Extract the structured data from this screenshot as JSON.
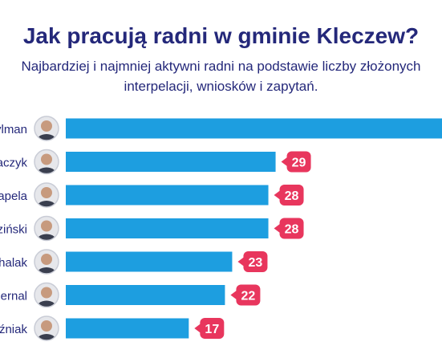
{
  "chart_data": {
    "type": "bar",
    "orientation": "horizontal",
    "title": "Jak pracują radni w gminie Kleczew?",
    "subtitle_lines": [
      "Najbardziej i najmniej aktywni radni na podstawie liczby złożonych",
      "interpelacji, wniosków i zapytań."
    ],
    "categories": [
      "ylman",
      "aczyk",
      "apela",
      "ziński",
      "halak",
      "ernal",
      "źniak"
    ],
    "values": [
      52,
      29,
      28,
      28,
      23,
      22,
      17
    ],
    "value_labels": [
      "",
      "29",
      "28",
      "28",
      "23",
      "22",
      "17"
    ],
    "xlim": [
      0,
      52
    ]
  },
  "colors": {
    "title": "#24287a",
    "subtitle": "#24287a",
    "bar": "#1d9ee0",
    "badge": "#e8365d",
    "badge_text": "#ffffff",
    "category_label": "#24287a",
    "avatar_ring": "#c9ccd6",
    "avatar_skin": "#c79a7e",
    "avatar_suit": "#3a3f4f",
    "avatar_bg": "#e6e7eb"
  }
}
